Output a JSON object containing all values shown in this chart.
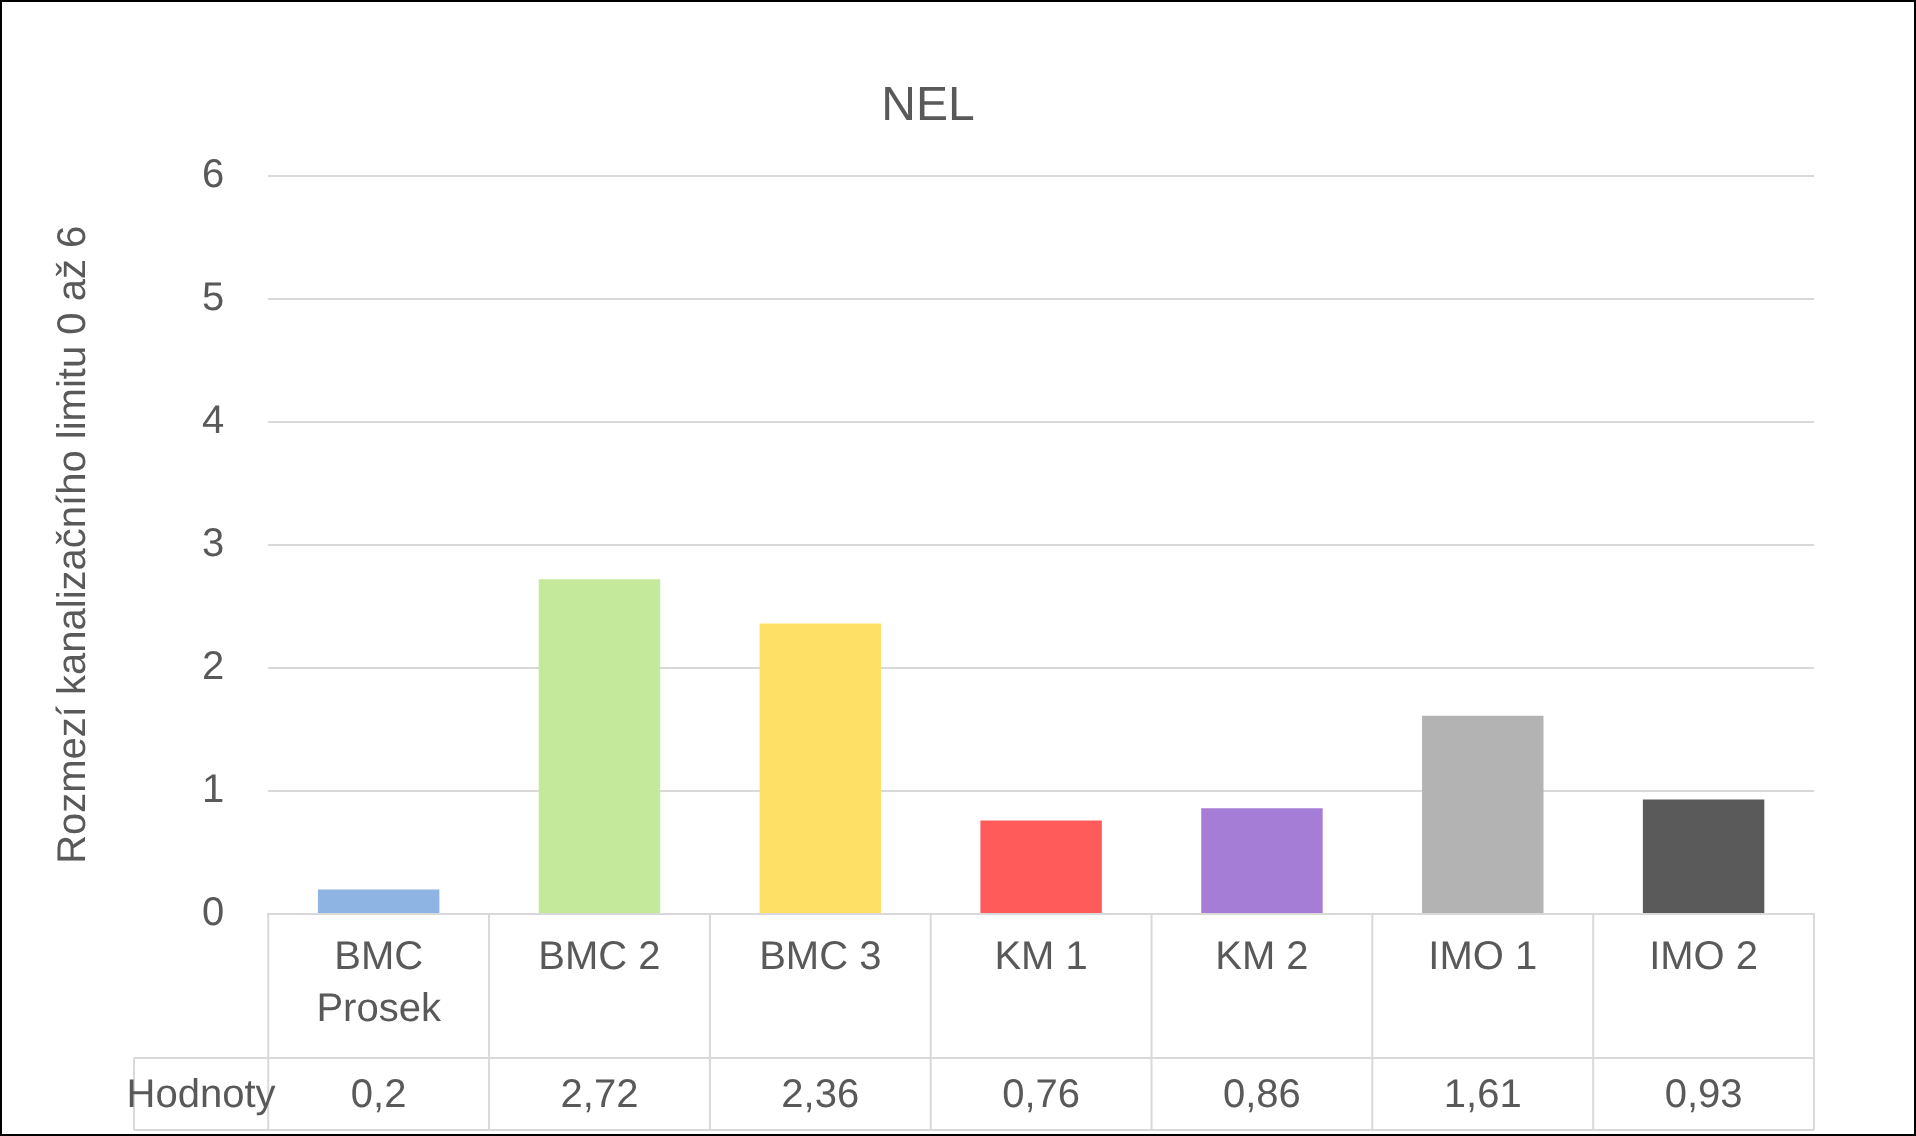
{
  "chart_data": {
    "type": "bar",
    "title": "NEL",
    "ylabel": "Rozmezí kanalizačního limitu 0 až 6",
    "categories": [
      "BMC Prosek",
      "BMC 2",
      "BMC 3",
      "KM 1",
      "KM 2",
      "IMO 1",
      "IMO 2"
    ],
    "series": [
      {
        "name": "Hodnoty",
        "colors": [
          "#8eb4e3",
          "#c4e99b",
          "#ffe066",
          "#ff5b5b",
          "#a67dd6",
          "#b3b3b3",
          "#5a5a5a"
        ],
        "values": [
          0.2,
          2.72,
          2.36,
          0.76,
          0.86,
          1.61,
          0.93
        ],
        "value_labels": [
          "0,2",
          "2,72",
          "2,36",
          "0,76",
          "0,86",
          "1,61",
          "0,93"
        ]
      }
    ],
    "ylim": [
      0,
      6
    ],
    "yticks": [
      0,
      1,
      2,
      3,
      4,
      5,
      6
    ],
    "grid": "y",
    "legend": false
  }
}
